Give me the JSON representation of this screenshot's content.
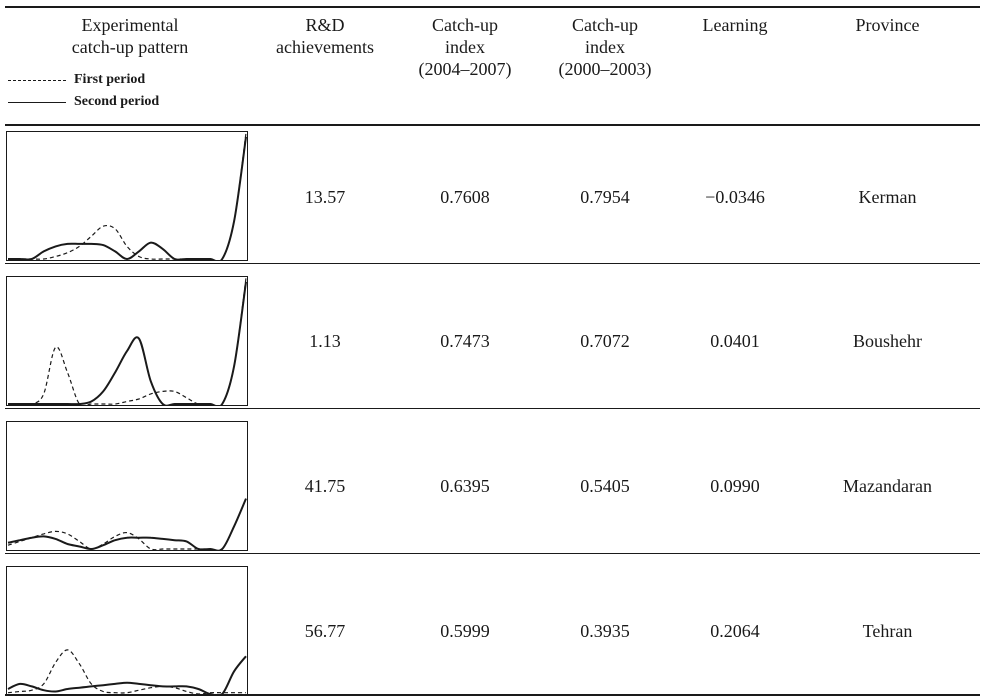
{
  "header": {
    "pattern": [
      "Experimental",
      "catch-up pattern"
    ],
    "rd": [
      "R&D",
      "achievements"
    ],
    "catchup_2004": [
      "Catch-up",
      "index",
      "(2004–2007)"
    ],
    "catchup_2000": [
      "Catch-up",
      "index",
      "(2000–2003)"
    ],
    "learning": "Learning",
    "province": "Province"
  },
  "legend": {
    "first": "First period",
    "second": "Second period"
  },
  "rows": [
    {
      "rd": "13.57",
      "c2004": "0.7608",
      "c2000": "0.7954",
      "learning": "−0.0346",
      "province": "Kerman"
    },
    {
      "rd": "1.13",
      "c2004": "0.7473",
      "c2000": "0.7072",
      "learning": "0.0401",
      "province": "Boushehr"
    },
    {
      "rd": "41.75",
      "c2004": "0.6395",
      "c2000": "0.5405",
      "learning": "0.0990",
      "province": "Mazandaran"
    },
    {
      "rd": "56.77",
      "c2004": "0.5999",
      "c2000": "0.3935",
      "learning": "0.2064",
      "province": "Tehran"
    }
  ],
  "chart_data": [
    {
      "type": "line",
      "x": [
        0,
        1,
        2,
        3,
        4,
        5,
        6,
        7,
        8,
        9,
        10,
        11,
        12,
        13,
        14,
        15,
        16,
        17,
        18,
        19,
        20
      ],
      "series": [
        {
          "name": "First period",
          "values": [
            0.0,
            0.0,
            0.0,
            0.0,
            0.02,
            0.05,
            0.1,
            0.18,
            0.26,
            0.24,
            0.1,
            0.02,
            0.0,
            0.0,
            0.0,
            0.0,
            0.0,
            0.0,
            0.0,
            0.3,
            1.0
          ],
          "style": "dashed"
        },
        {
          "name": "Second period",
          "values": [
            0.0,
            0.0,
            0.0,
            0.06,
            0.1,
            0.12,
            0.12,
            0.12,
            0.11,
            0.06,
            0.0,
            0.06,
            0.13,
            0.08,
            0.0,
            0.0,
            0.0,
            0.0,
            0.0,
            0.3,
            0.97
          ],
          "style": "solid"
        }
      ]
    },
    {
      "type": "line",
      "x": [
        0,
        1,
        2,
        3,
        4,
        5,
        6,
        7,
        8,
        9,
        10,
        11,
        12,
        13,
        14,
        15,
        16,
        17,
        18,
        19,
        20
      ],
      "series": [
        {
          "name": "First period",
          "values": [
            0.0,
            0.0,
            0.0,
            0.08,
            0.45,
            0.25,
            0.0,
            0.0,
            0.0,
            0.0,
            0.02,
            0.04,
            0.08,
            0.1,
            0.1,
            0.05,
            0.0,
            0.0,
            0.0,
            0.3,
            1.0
          ],
          "style": "dashed"
        },
        {
          "name": "Second period",
          "values": [
            0.0,
            0.0,
            0.0,
            0.0,
            0.0,
            0.0,
            0.0,
            0.02,
            0.1,
            0.25,
            0.42,
            0.52,
            0.18,
            0.0,
            0.0,
            0.0,
            0.0,
            0.0,
            0.0,
            0.3,
            0.97
          ],
          "style": "solid"
        }
      ]
    },
    {
      "type": "line",
      "x": [
        0,
        1,
        2,
        3,
        4,
        5,
        6,
        7,
        8,
        9,
        10,
        11,
        12,
        13,
        14,
        15,
        16,
        17,
        18,
        19,
        20
      ],
      "series": [
        {
          "name": "First period",
          "values": [
            0.03,
            0.06,
            0.09,
            0.12,
            0.14,
            0.12,
            0.06,
            0.0,
            0.04,
            0.1,
            0.13,
            0.08,
            0.0,
            0.0,
            0.0,
            0.0,
            0.0,
            0.0,
            0.0,
            0.18,
            0.4
          ],
          "style": "dashed"
        },
        {
          "name": "Second period",
          "values": [
            0.05,
            0.07,
            0.09,
            0.1,
            0.08,
            0.04,
            0.02,
            0.0,
            0.03,
            0.07,
            0.09,
            0.09,
            0.09,
            0.08,
            0.07,
            0.06,
            0.0,
            0.0,
            0.0,
            0.18,
            0.4
          ],
          "style": "solid"
        }
      ]
    },
    {
      "type": "line",
      "x": [
        0,
        1,
        2,
        3,
        4,
        5,
        6,
        7,
        8,
        9,
        10,
        11,
        12,
        13,
        14,
        15,
        16,
        17,
        18,
        19,
        20
      ],
      "series": [
        {
          "name": "First period",
          "values": [
            0.01,
            0.02,
            0.03,
            0.08,
            0.25,
            0.35,
            0.24,
            0.08,
            0.02,
            0.01,
            0.01,
            0.03,
            0.05,
            0.06,
            0.05,
            0.02,
            0.0,
            0.01,
            0.01,
            0.01,
            0.01
          ],
          "style": "dashed"
        },
        {
          "name": "Second period",
          "values": [
            0.04,
            0.08,
            0.06,
            0.03,
            0.02,
            0.04,
            0.05,
            0.06,
            0.07,
            0.08,
            0.09,
            0.08,
            0.07,
            0.06,
            0.06,
            0.06,
            0.04,
            0.0,
            0.0,
            0.18,
            0.3
          ],
          "style": "solid"
        }
      ]
    }
  ]
}
